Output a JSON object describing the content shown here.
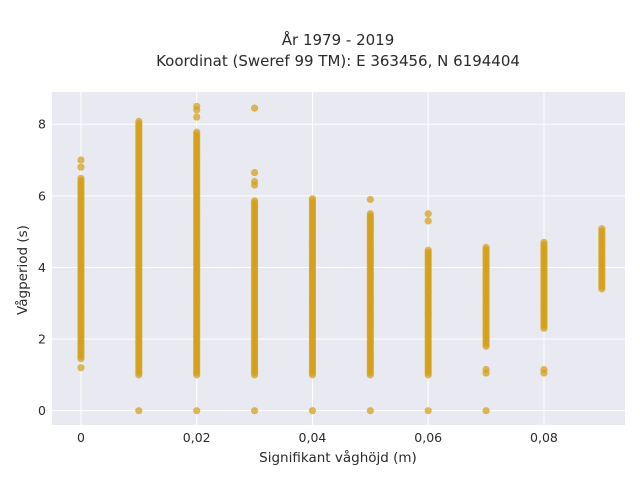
{
  "chart_data": {
    "type": "scatter",
    "title": "År 1979 - 2019",
    "subtitle": "Koordinat (Sweref 99 TM): E 363456, N 6194404",
    "xlabel": "Signifikant våghöjd (m)",
    "ylabel": "Vågperiod (s)",
    "xlim": [
      -0.005,
      0.094
    ],
    "ylim": [
      -0.4,
      8.9
    ],
    "x_ticks": [
      0,
      0.02,
      0.04,
      0.06,
      0.08
    ],
    "x_tick_labels": [
      "0",
      "0,02",
      "0,04",
      "0,06",
      "0,08"
    ],
    "y_ticks": [
      0,
      2,
      4,
      6,
      8
    ],
    "y_tick_labels": [
      "0",
      "2",
      "4",
      "6",
      "8"
    ],
    "grid": true,
    "marker_color": "#d4a017",
    "plot_background": "#e9e9f1",
    "series": [
      {
        "columns": [
          {
            "x": 0.0,
            "range": [
              1.45,
              6.5
            ],
            "extra": [
              1.2,
              6.8,
              7.0
            ]
          },
          {
            "x": 0.01,
            "range": [
              1.0,
              8.1
            ],
            "extra": [
              0.0
            ]
          },
          {
            "x": 0.02,
            "range": [
              1.0,
              7.8
            ],
            "extra": [
              0.0,
              8.2,
              8.4,
              8.5
            ]
          },
          {
            "x": 0.03,
            "range": [
              1.0,
              5.9
            ],
            "extra": [
              0.0,
              6.3,
              6.4,
              6.65,
              8.45
            ]
          },
          {
            "x": 0.04,
            "range": [
              1.0,
              5.95
            ],
            "extra": [
              0.0
            ]
          },
          {
            "x": 0.05,
            "range": [
              1.0,
              5.5
            ],
            "extra": [
              0.0,
              5.9
            ]
          },
          {
            "x": 0.06,
            "range": [
              1.0,
              4.5
            ],
            "extra": [
              0.0,
              5.3,
              5.5
            ]
          },
          {
            "x": 0.07,
            "range": [
              1.8,
              4.6
            ],
            "extra": [
              0.0,
              1.05,
              1.15
            ]
          },
          {
            "x": 0.08,
            "range": [
              2.3,
              4.7
            ],
            "extra": [
              1.05,
              1.15
            ]
          },
          {
            "x": 0.09,
            "range": [
              3.4,
              5.1
            ],
            "extra": []
          }
        ]
      }
    ]
  }
}
